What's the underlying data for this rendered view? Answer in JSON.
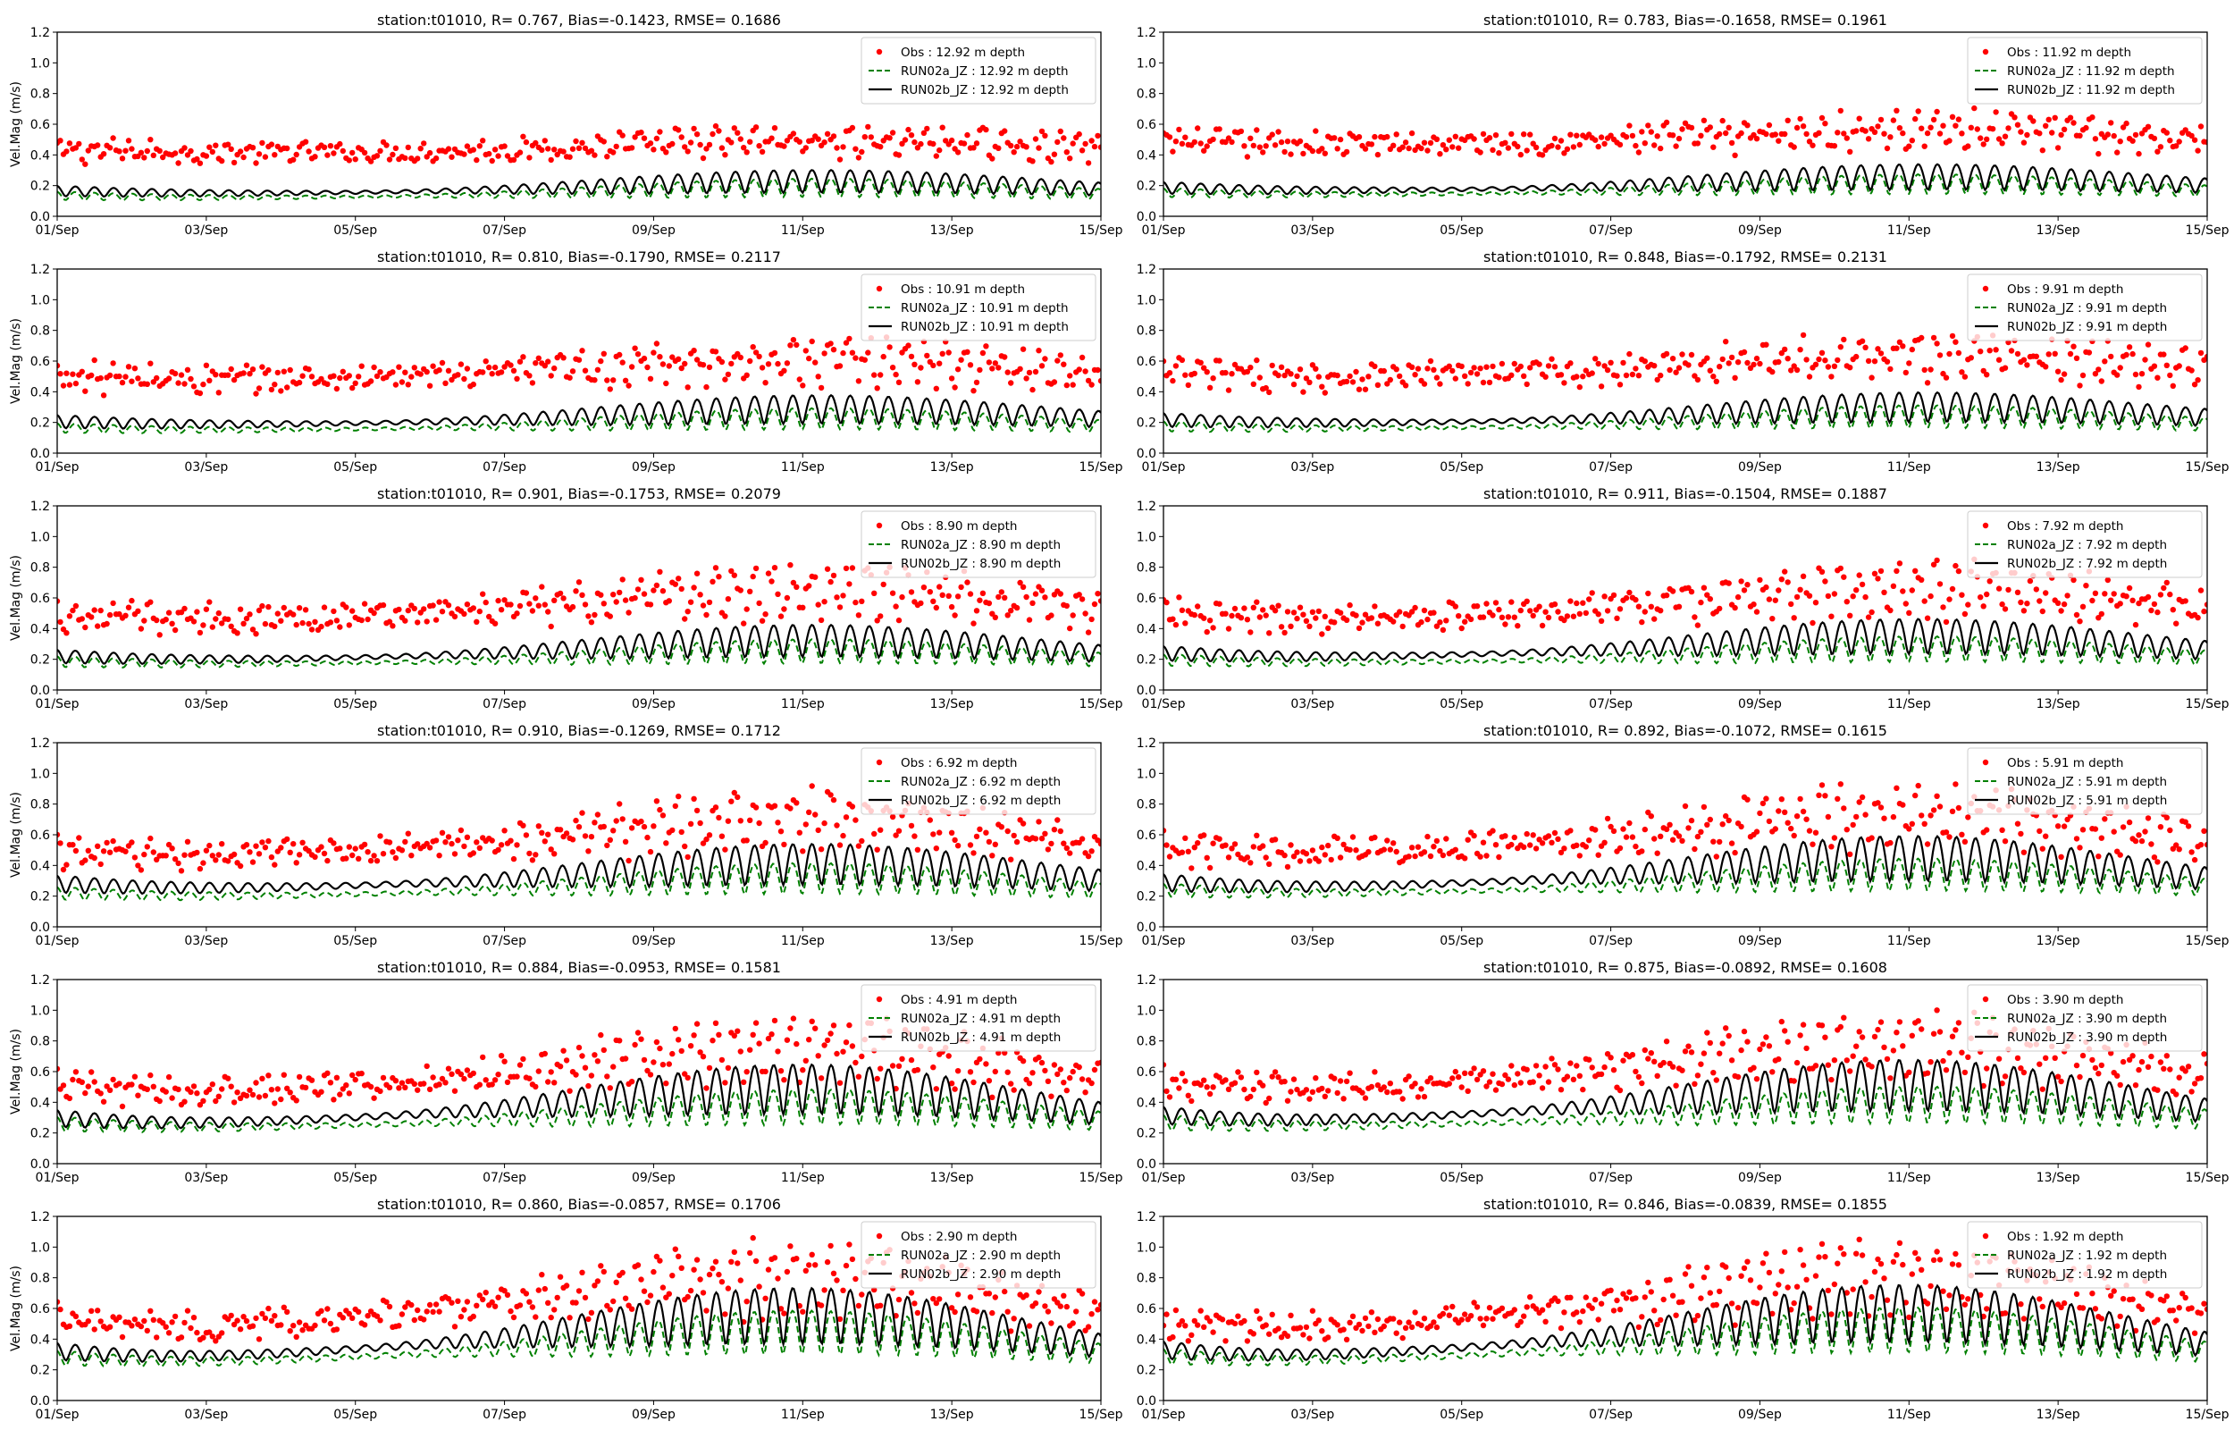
{
  "figure": {
    "ylabel": "Vel.Mag (m/s)",
    "colors": {
      "obs": "#ff0000",
      "run_a": "#008000",
      "run_b": "#000000"
    }
  },
  "chart_data": [
    {
      "type": "line",
      "title": "station:t01010, R= 0.767, Bias=-0.1423, RMSE= 0.1686",
      "ylabel": "Vel.Mag (m/s)",
      "x_ticks": [
        "01/Sep",
        "03/Sep",
        "05/Sep",
        "07/Sep",
        "09/Sep",
        "11/Sep",
        "13/Sep",
        "15/Sep"
      ],
      "y_ticks": [
        "0.0",
        "0.2",
        "0.4",
        "0.6",
        "0.8",
        "1.0",
        "1.2"
      ],
      "ylim": [
        0,
        1.2
      ],
      "xlim_days": [
        0,
        14
      ],
      "legend": "top-right",
      "series": [
        {
          "name": "Obs : 12.92 m depth",
          "mean": 0.3,
          "amp": 0.16,
          "sem": 0.3,
          "noise": 0.06
        },
        {
          "name": "RUN02a_JZ : 12.92 m depth",
          "mean": 0.13,
          "amp": 0.13,
          "sem": 0.35
        },
        {
          "name": "RUN02b_JZ : 12.92 m depth",
          "mean": 0.16,
          "amp": 0.16,
          "sem": 0.35
        }
      ]
    },
    {
      "type": "line",
      "title": "station:t01010, R= 0.783, Bias=-0.1658, RMSE= 0.1961",
      "ylabel": "",
      "x_ticks": [
        "01/Sep",
        "03/Sep",
        "05/Sep",
        "07/Sep",
        "09/Sep",
        "11/Sep",
        "13/Sep",
        "15/Sep"
      ],
      "y_ticks": [
        "0.0",
        "0.2",
        "0.4",
        "0.6",
        "0.8",
        "1.0",
        "1.2"
      ],
      "ylim": [
        0,
        1.2
      ],
      "xlim_days": [
        0,
        14
      ],
      "legend": "top-right",
      "series": [
        {
          "name": "Obs : 11.92 m depth",
          "mean": 0.36,
          "amp": 0.18,
          "sem": 0.35,
          "noise": 0.07
        },
        {
          "name": "RUN02a_JZ : 11.92 m depth",
          "mean": 0.15,
          "amp": 0.14,
          "sem": 0.35
        },
        {
          "name": "RUN02b_JZ : 11.92 m depth",
          "mean": 0.18,
          "amp": 0.18,
          "sem": 0.35
        }
      ]
    },
    {
      "type": "line",
      "title": "station:t01010, R= 0.810, Bias=-0.1790, RMSE= 0.2117",
      "ylabel": "Vel.Mag (m/s)",
      "x_ticks": [
        "01/Sep",
        "03/Sep",
        "05/Sep",
        "07/Sep",
        "09/Sep",
        "11/Sep",
        "13/Sep",
        "15/Sep"
      ],
      "y_ticks": [
        "0.0",
        "0.2",
        "0.4",
        "0.6",
        "0.8",
        "1.0",
        "1.2"
      ],
      "ylim": [
        0,
        1.2
      ],
      "xlim_days": [
        0,
        14
      ],
      "legend": "top-right",
      "series": [
        {
          "name": "Obs : 10.91 m depth",
          "mean": 0.38,
          "amp": 0.22,
          "sem": 0.4,
          "noise": 0.08
        },
        {
          "name": "RUN02a_JZ : 10.91 m depth",
          "mean": 0.16,
          "amp": 0.15,
          "sem": 0.35
        },
        {
          "name": "RUN02b_JZ : 10.91 m depth",
          "mean": 0.2,
          "amp": 0.2,
          "sem": 0.35
        }
      ]
    },
    {
      "type": "line",
      "title": "station:t01010, R= 0.848, Bias=-0.1792, RMSE= 0.2131",
      "ylabel": "",
      "x_ticks": [
        "01/Sep",
        "03/Sep",
        "05/Sep",
        "07/Sep",
        "09/Sep",
        "11/Sep",
        "13/Sep",
        "15/Sep"
      ],
      "y_ticks": [
        "0.0",
        "0.2",
        "0.4",
        "0.6",
        "0.8",
        "1.0",
        "1.2"
      ],
      "ylim": [
        0,
        1.2
      ],
      "xlim_days": [
        0,
        14
      ],
      "legend": "top-right",
      "series": [
        {
          "name": "Obs : 9.91 m depth",
          "mean": 0.4,
          "amp": 0.24,
          "sem": 0.4,
          "noise": 0.08
        },
        {
          "name": "RUN02a_JZ : 9.91 m depth",
          "mean": 0.17,
          "amp": 0.16,
          "sem": 0.35
        },
        {
          "name": "RUN02b_JZ : 9.91 m depth",
          "mean": 0.21,
          "amp": 0.21,
          "sem": 0.35
        }
      ]
    },
    {
      "type": "line",
      "title": "station:t01010, R= 0.901, Bias=-0.1753, RMSE= 0.2079",
      "ylabel": "Vel.Mag (m/s)",
      "x_ticks": [
        "01/Sep",
        "03/Sep",
        "05/Sep",
        "07/Sep",
        "09/Sep",
        "11/Sep",
        "13/Sep",
        "15/Sep"
      ],
      "y_ticks": [
        "0.0",
        "0.2",
        "0.4",
        "0.6",
        "0.8",
        "1.0",
        "1.2"
      ],
      "ylim": [
        0,
        1.2
      ],
      "xlim_days": [
        0,
        14
      ],
      "legend": "top-right",
      "series": [
        {
          "name": "Obs : 8.90 m depth",
          "mean": 0.38,
          "amp": 0.28,
          "sem": 0.45,
          "noise": 0.08
        },
        {
          "name": "RUN02a_JZ : 8.90 m depth",
          "mean": 0.18,
          "amp": 0.17,
          "sem": 0.35
        },
        {
          "name": "RUN02b_JZ : 8.90 m depth",
          "mean": 0.22,
          "amp": 0.22,
          "sem": 0.4
        }
      ]
    },
    {
      "type": "line",
      "title": "station:t01010, R= 0.911, Bias=-0.1504, RMSE= 0.1887",
      "ylabel": "",
      "x_ticks": [
        "01/Sep",
        "03/Sep",
        "05/Sep",
        "07/Sep",
        "09/Sep",
        "11/Sep",
        "13/Sep",
        "15/Sep"
      ],
      "y_ticks": [
        "0.0",
        "0.2",
        "0.4",
        "0.6",
        "0.8",
        "1.0",
        "1.2"
      ],
      "ylim": [
        0,
        1.2
      ],
      "xlim_days": [
        0,
        14
      ],
      "legend": "top-right",
      "series": [
        {
          "name": "Obs : 7.92 m depth",
          "mean": 0.38,
          "amp": 0.3,
          "sem": 0.45,
          "noise": 0.08
        },
        {
          "name": "RUN02a_JZ : 7.92 m depth",
          "mean": 0.19,
          "amp": 0.18,
          "sem": 0.35
        },
        {
          "name": "RUN02b_JZ : 7.92 m depth",
          "mean": 0.24,
          "amp": 0.24,
          "sem": 0.4
        }
      ]
    },
    {
      "type": "line",
      "title": "station:t01010, R= 0.910, Bias=-0.1269, RMSE= 0.1712",
      "ylabel": "Vel.Mag (m/s)",
      "x_ticks": [
        "01/Sep",
        "03/Sep",
        "05/Sep",
        "07/Sep",
        "09/Sep",
        "11/Sep",
        "13/Sep",
        "15/Sep"
      ],
      "y_ticks": [
        "0.0",
        "0.2",
        "0.4",
        "0.6",
        "0.8",
        "1.0",
        "1.2"
      ],
      "ylim": [
        0,
        1.2
      ],
      "xlim_days": [
        0,
        14
      ],
      "legend": "top-right",
      "series": [
        {
          "name": "Obs : 6.92 m depth",
          "mean": 0.4,
          "amp": 0.32,
          "sem": 0.5,
          "noise": 0.08
        },
        {
          "name": "RUN02a_JZ : 6.92 m depth",
          "mean": 0.22,
          "amp": 0.21,
          "sem": 0.4
        },
        {
          "name": "RUN02b_JZ : 6.92 m depth",
          "mean": 0.28,
          "amp": 0.28,
          "sem": 0.4
        }
      ]
    },
    {
      "type": "line",
      "title": "station:t01010, R= 0.892, Bias=-0.1072, RMSE= 0.1615",
      "ylabel": "",
      "x_ticks": [
        "01/Sep",
        "03/Sep",
        "05/Sep",
        "07/Sep",
        "09/Sep",
        "11/Sep",
        "13/Sep",
        "15/Sep"
      ],
      "y_ticks": [
        "0.0",
        "0.2",
        "0.4",
        "0.6",
        "0.8",
        "1.0",
        "1.2"
      ],
      "ylim": [
        0,
        1.2
      ],
      "xlim_days": [
        0,
        14
      ],
      "legend": "top-right",
      "series": [
        {
          "name": "Obs : 5.91 m depth",
          "mean": 0.42,
          "amp": 0.33,
          "sem": 0.5,
          "noise": 0.08
        },
        {
          "name": "RUN02a_JZ : 5.91 m depth",
          "mean": 0.24,
          "amp": 0.22,
          "sem": 0.4
        },
        {
          "name": "RUN02b_JZ : 5.91 m depth",
          "mean": 0.3,
          "amp": 0.3,
          "sem": 0.45
        }
      ]
    },
    {
      "type": "line",
      "title": "station:t01010, R= 0.884, Bias=-0.0953, RMSE= 0.1581",
      "ylabel": "Vel.Mag (m/s)",
      "x_ticks": [
        "01/Sep",
        "03/Sep",
        "05/Sep",
        "07/Sep",
        "09/Sep",
        "11/Sep",
        "13/Sep",
        "15/Sep"
      ],
      "y_ticks": [
        "0.0",
        "0.2",
        "0.4",
        "0.6",
        "0.8",
        "1.0",
        "1.2"
      ],
      "ylim": [
        0,
        1.2
      ],
      "xlim_days": [
        0,
        14
      ],
      "legend": "top-right",
      "series": [
        {
          "name": "Obs : 4.91 m depth",
          "mean": 0.42,
          "amp": 0.35,
          "sem": 0.55,
          "noise": 0.08
        },
        {
          "name": "RUN02a_JZ : 4.91 m depth",
          "mean": 0.26,
          "amp": 0.24,
          "sem": 0.4
        },
        {
          "name": "RUN02b_JZ : 4.91 m depth",
          "mean": 0.32,
          "amp": 0.32,
          "sem": 0.5
        }
      ]
    },
    {
      "type": "line",
      "title": "station:t01010, R= 0.875, Bias=-0.0892, RMSE= 0.1608",
      "ylabel": "",
      "x_ticks": [
        "01/Sep",
        "03/Sep",
        "05/Sep",
        "07/Sep",
        "09/Sep",
        "11/Sep",
        "13/Sep",
        "15/Sep"
      ],
      "y_ticks": [
        "0.0",
        "0.2",
        "0.4",
        "0.6",
        "0.8",
        "1.0",
        "1.2"
      ],
      "ylim": [
        0,
        1.2
      ],
      "xlim_days": [
        0,
        14
      ],
      "legend": "top-right",
      "series": [
        {
          "name": "Obs : 3.90 m depth",
          "mean": 0.44,
          "amp": 0.36,
          "sem": 0.55,
          "noise": 0.08
        },
        {
          "name": "RUN02a_JZ : 3.90 m depth",
          "mean": 0.27,
          "amp": 0.25,
          "sem": 0.4
        },
        {
          "name": "RUN02b_JZ : 3.90 m depth",
          "mean": 0.34,
          "amp": 0.33,
          "sem": 0.5
        }
      ]
    },
    {
      "type": "line",
      "title": "station:t01010, R= 0.860, Bias=-0.0857, RMSE= 0.1706",
      "ylabel": "Vel.Mag (m/s)",
      "x_ticks": [
        "01/Sep",
        "03/Sep",
        "05/Sep",
        "07/Sep",
        "09/Sep",
        "11/Sep",
        "13/Sep",
        "15/Sep"
      ],
      "y_ticks": [
        "0.0",
        "0.2",
        "0.4",
        "0.6",
        "0.8",
        "1.0",
        "1.2"
      ],
      "ylim": [
        0,
        1.2
      ],
      "xlim_days": [
        0,
        14
      ],
      "legend": "top-right",
      "series": [
        {
          "name": "Obs : 2.90 m depth",
          "mean": 0.45,
          "amp": 0.38,
          "sem": 0.6,
          "noise": 0.08
        },
        {
          "name": "RUN02a_JZ : 2.90 m depth",
          "mean": 0.3,
          "amp": 0.28,
          "sem": 0.5
        },
        {
          "name": "RUN02b_JZ : 2.90 m depth",
          "mean": 0.36,
          "amp": 0.35,
          "sem": 0.55
        }
      ]
    },
    {
      "type": "line",
      "title": "station:t01010, R= 0.846, Bias=-0.0839, RMSE= 0.1855",
      "ylabel": "",
      "x_ticks": [
        "01/Sep",
        "03/Sep",
        "05/Sep",
        "07/Sep",
        "09/Sep",
        "11/Sep",
        "13/Sep",
        "15/Sep"
      ],
      "y_ticks": [
        "0.0",
        "0.2",
        "0.4",
        "0.6",
        "0.8",
        "1.0",
        "1.2"
      ],
      "ylim": [
        0,
        1.2
      ],
      "xlim_days": [
        0,
        14
      ],
      "legend": "top-right",
      "series": [
        {
          "name": "Obs : 1.92 m depth",
          "mean": 0.45,
          "amp": 0.38,
          "sem": 0.6,
          "noise": 0.08
        },
        {
          "name": "RUN02a_JZ : 1.92 m depth",
          "mean": 0.31,
          "amp": 0.29,
          "sem": 0.5
        },
        {
          "name": "RUN02b_JZ : 1.92 m depth",
          "mean": 0.37,
          "amp": 0.36,
          "sem": 0.55
        }
      ]
    }
  ]
}
